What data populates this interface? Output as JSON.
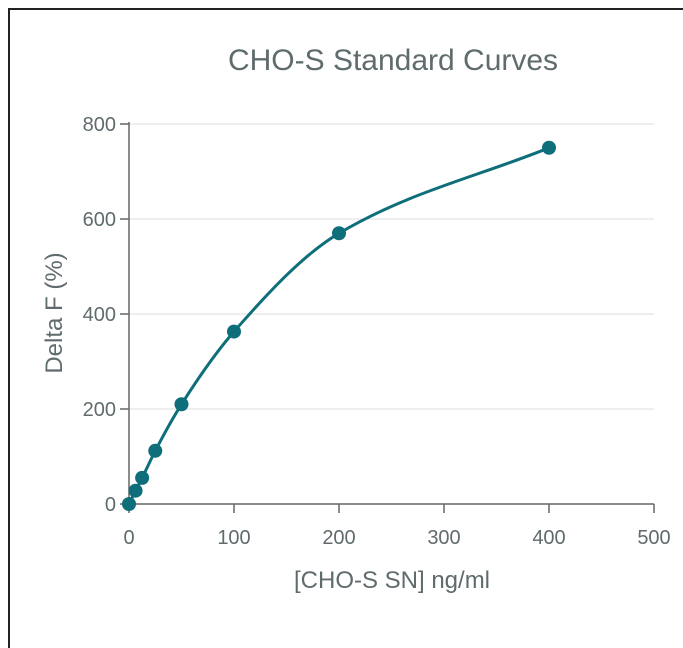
{
  "chart_data": {
    "type": "scatter",
    "title": "CHO-S Standard Curves",
    "xlabel": "[CHO-S SN] ng/ml",
    "ylabel": "Delta F (%)",
    "xlim": [
      0,
      500
    ],
    "ylim": [
      0,
      800
    ],
    "x_ticks": [
      "0",
      "100",
      "200",
      "300",
      "400",
      "500"
    ],
    "y_ticks": [
      "0",
      "200",
      "400",
      "600",
      "800"
    ],
    "grid": "horizontal",
    "colors": {
      "series": "#0e6e7a",
      "grid": "#dddddd",
      "axis": "#666666",
      "text": "#5f6b6d"
    },
    "series": [
      {
        "points": [
          {
            "x": 0,
            "y": 0
          },
          {
            "x": 6.25,
            "y": 28
          },
          {
            "x": 12.5,
            "y": 55
          },
          {
            "x": 25,
            "y": 112
          },
          {
            "x": 50,
            "y": 210
          },
          {
            "x": 100,
            "y": 363
          },
          {
            "x": 200,
            "y": 570
          },
          {
            "x": 400,
            "y": 750
          }
        ],
        "fit": "curve"
      }
    ]
  }
}
